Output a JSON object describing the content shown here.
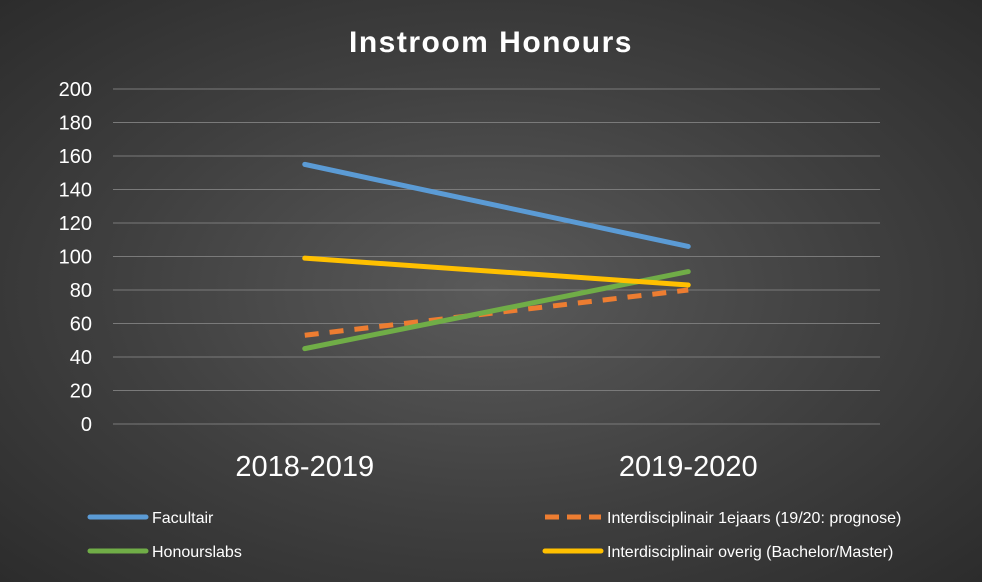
{
  "chart_data": {
    "type": "line",
    "title": "Instroom Honours",
    "xlabel": "",
    "ylabel": "",
    "categories": [
      "2018-2019",
      "2019-2020"
    ],
    "ylim": [
      0,
      200
    ],
    "yticks": [
      0,
      20,
      40,
      60,
      80,
      100,
      120,
      140,
      160,
      180,
      200
    ],
    "grid": true,
    "legend_position": "bottom",
    "series": [
      {
        "name": "Facultair",
        "values": [
          155,
          106
        ],
        "color": "#5b9bd5",
        "dashed": false
      },
      {
        "name": "Interdisciplinair 1ejaars (19/20: prognose)",
        "values": [
          53,
          80
        ],
        "color": "#ed7d31",
        "dashed": true
      },
      {
        "name": "Honourslabs",
        "values": [
          45,
          91
        ],
        "color": "#70ad47",
        "dashed": false
      },
      {
        "name": "Interdisciplinair overig (Bachelor/Master)",
        "values": [
          99,
          83
        ],
        "color": "#ffc000",
        "dashed": false
      }
    ]
  }
}
